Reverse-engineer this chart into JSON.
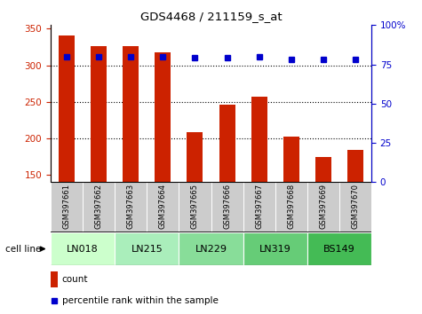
{
  "title": "GDS4468 / 211159_s_at",
  "samples": [
    "GSM397661",
    "GSM397662",
    "GSM397663",
    "GSM397664",
    "GSM397665",
    "GSM397666",
    "GSM397667",
    "GSM397668",
    "GSM397669",
    "GSM397670"
  ],
  "counts": [
    341,
    326,
    326,
    318,
    208,
    246,
    257,
    202,
    175,
    184
  ],
  "percentile_ranks": [
    80,
    80,
    80,
    80,
    79,
    79,
    80,
    78,
    78,
    78
  ],
  "ylim_left": [
    140,
    355
  ],
  "yticks_left": [
    150,
    200,
    250,
    300,
    350
  ],
  "ylim_right": [
    0,
    100
  ],
  "yticks_right": [
    0,
    25,
    50,
    75,
    100
  ],
  "bar_color": "#cc2200",
  "dot_color": "#0000cc",
  "bar_width": 0.5,
  "cell_lines": {
    "LN018": [
      0,
      1
    ],
    "LN215": [
      2,
      3
    ],
    "LN229": [
      4,
      5
    ],
    "LN319": [
      6,
      7
    ],
    "BS149": [
      8,
      9
    ]
  },
  "cell_line_colors": {
    "LN018": "#ccffcc",
    "LN215": "#aaeebb",
    "LN229": "#88dd99",
    "LN319": "#66cc77",
    "BS149": "#44bb55"
  },
  "tick_label_color_left": "#cc2200",
  "tick_label_color_right": "#0000cc",
  "sample_bg_color": "#cccccc",
  "legend_count_color": "#cc2200",
  "legend_pct_color": "#0000cc",
  "grid_yticks": [
    200,
    250,
    300
  ]
}
